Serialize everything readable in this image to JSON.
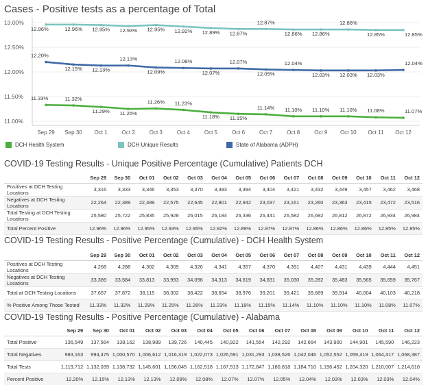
{
  "chart_title": "Cases - Positive tests as a percentage of Total",
  "colors": {
    "dch_health": "#4caf3e",
    "dch_unique": "#7cc4c0",
    "alabama": "#3f6aa7"
  },
  "chart_data": {
    "type": "line",
    "title": "Cases - Positive tests as a percentage of Total",
    "categories": [
      "Sep 29",
      "Sep 30",
      "Oct 1",
      "Oct 2",
      "Oct 3",
      "Oct 4",
      "Oct 5",
      "Oct 6",
      "Oct 7",
      "Oct 8",
      "Oct 9",
      "Oct 10",
      "Oct 11",
      "Oct 12"
    ],
    "y_ticks": [
      "13.00%",
      "12.50%",
      "12.00%",
      "11.50%",
      "11.00%"
    ],
    "ylim": [
      11.0,
      13.0
    ],
    "series": [
      {
        "name": "DCH Unique Results",
        "color": "#7cc4c0",
        "values": [
          12.96,
          12.96,
          12.95,
          12.93,
          12.95,
          12.92,
          12.89,
          12.87,
          12.87,
          12.86,
          12.86,
          12.86,
          12.85,
          12.85
        ],
        "labels": [
          "12.96%",
          "12.96%",
          "12.95%",
          "12.93%",
          "12.95%",
          "12.92%",
          "12.89%",
          "12.87%",
          "12.87%",
          "12.86%",
          "12.86%",
          "12.86%",
          "12.85%",
          "12.85%"
        ]
      },
      {
        "name": "State of Alabama (ADPH)",
        "color": "#3f6aa7",
        "values": [
          12.2,
          12.15,
          12.13,
          12.13,
          12.09,
          12.08,
          12.07,
          12.07,
          12.05,
          12.04,
          12.03,
          12.03,
          12.03,
          12.04
        ],
        "labels": [
          "12.20%",
          "12.15%",
          "12.13%",
          "12.13%",
          "12.09%",
          "12.08%",
          "12.07%",
          "12.07%",
          "12.05%",
          "12.04%",
          "12.03%",
          "12.03%",
          "12.03%",
          "12.04%"
        ]
      },
      {
        "name": "DCH Health System",
        "color": "#4caf3e",
        "values": [
          11.33,
          11.32,
          11.29,
          11.25,
          11.26,
          11.23,
          11.18,
          11.15,
          11.14,
          11.1,
          11.1,
          11.1,
          11.08,
          11.07
        ],
        "labels": [
          "11.33%",
          "11.32%",
          "11.29%",
          "11.25%",
          "11.26%",
          "11.23%",
          "11.18%",
          "11.15%",
          "11.14%",
          "11.10%",
          "11.10%",
          "11.10%",
          "11.08%",
          "11.07%"
        ]
      }
    ]
  },
  "legend": [
    {
      "label": "DCH Health System",
      "color": "#4caf3e"
    },
    {
      "label": "DCH Unique Results",
      "color": "#7cc4c0"
    },
    {
      "label": "State of Alabama (ADPH)",
      "color": "#3f6aa7"
    }
  ],
  "tables": [
    {
      "title": "COVID-19 Testing Results - Unique Positive Percentage (Cumulative) Patients DCH",
      "columns": [
        "Sep 29",
        "Sep 30",
        "Oct 01",
        "Oct 02",
        "Oct 03",
        "Oct 04",
        "Oct 05",
        "Oct 06",
        "Oct 07",
        "Oct 08",
        "Oct 09",
        "Oct 10",
        "Oct 11",
        "Oct 12"
      ],
      "rows": [
        {
          "label": "Positives at DCH Testing Locations",
          "values": [
            "3,316",
            "3,333",
            "3,346",
            "3,353",
            "3,370",
            "3,383",
            "3,394",
            "3,404",
            "3,421",
            "3,432",
            "3,449",
            "3,457",
            "3,462",
            "3,468"
          ]
        },
        {
          "label": "Negatives at DCH Testing Locations",
          "values": [
            "22,264",
            "22,389",
            "22,489",
            "22,575",
            "22,645",
            "22,801",
            "22,942",
            "23,037",
            "23,161",
            "23,260",
            "23,363",
            "23,415",
            "23,472",
            "23,516"
          ]
        },
        {
          "label": "Total Testing at DCH Testing Locations",
          "values": [
            "25,580",
            "25,722",
            "25,835",
            "25,928",
            "26,015",
            "26,184",
            "26,336",
            "26,441",
            "26,582",
            "26,692",
            "26,812",
            "26,872",
            "26,934",
            "26,984"
          ]
        },
        {
          "label": "Total Percent Positive",
          "values": [
            "12.96%",
            "12.96%",
            "12.95%",
            "12.93%",
            "12.95%",
            "12.92%",
            "12.89%",
            "12.87%",
            "12.87%",
            "12.86%",
            "12.86%",
            "12.86%",
            "12.85%",
            "12.85%"
          ]
        }
      ]
    },
    {
      "title": "COVID-19 Testing Results - Positive Percentage (Cumulative) - DCH Health System",
      "columns": [
        "Sep 29",
        "Sep 30",
        "Oct 01",
        "Oct 02",
        "Oct 03",
        "Oct 04",
        "Oct 05",
        "Oct 06",
        "Oct 07",
        "Oct 08",
        "Oct 09",
        "Oct 10",
        "Oct 11",
        "Oct 12"
      ],
      "rows": [
        {
          "label": "Positives at DCH Testing Locations",
          "values": [
            "4,268",
            "4,288",
            "4,302",
            "4,309",
            "4,326",
            "4,341",
            "4,357",
            "4,370",
            "4,391",
            "4,407",
            "4,431",
            "4,439",
            "4,444",
            "4,451"
          ]
        },
        {
          "label": "Negatives at DCH Testing Locations",
          "values": [
            "33,389",
            "33,584",
            "33,813",
            "33,993",
            "34,096",
            "34,313",
            "34,619",
            "34,831",
            "35,030",
            "35,282",
            "35,483",
            "35,565",
            "35,659",
            "35,767"
          ]
        },
        {
          "label": "Total at DCH Testing Locations",
          "values": [
            "37,657",
            "37,872",
            "38,115",
            "38,302",
            "38,422",
            "38,654",
            "38,976",
            "39,201",
            "39,421",
            "39,689",
            "39,914",
            "40,004",
            "40,103",
            "40,218"
          ]
        },
        {
          "label": "% Positive Among Those Tested",
          "values": [
            "11.33%",
            "11.32%",
            "11.29%",
            "11.25%",
            "11.26%",
            "11.23%",
            "11.18%",
            "11.15%",
            "11.14%",
            "11.10%",
            "11.10%",
            "11.10%",
            "11.08%",
            "11.07%"
          ]
        }
      ]
    },
    {
      "title": "COVID-19 Testing Results - Positive Percentage (Cumulative) - Alabama",
      "columns": [
        "Sep 29",
        "Sep 30",
        "Oct 01",
        "Oct 02",
        "Oct 03",
        "Oct 04",
        "Oct 05",
        "Oct 06",
        "Oct 07",
        "Oct 08",
        "Oct 09",
        "Oct 10",
        "Oct 11",
        "Oct 12"
      ],
      "rows": [
        {
          "label": "Total Positive",
          "values": [
            "136,549",
            "137,564",
            "138,162",
            "138,989",
            "139,726",
            "140,445",
            "140,922",
            "141,554",
            "142,292",
            "142,664",
            "143,900",
            "144,901",
            "145,590",
            "146,223"
          ]
        },
        {
          "label": "Total Negatives",
          "values": [
            "983,163",
            "994,475",
            "1,000,570",
            "1,006,612",
            "1,016,319",
            "1,022,073",
            "1,026,591",
            "1,031,293",
            "1,038,526",
            "1,042,046",
            "1,052,552",
            "1,059,419",
            "1,064,417",
            "1,068,387"
          ]
        },
        {
          "label": "Total Tests",
          "values": [
            "1,119,712",
            "1,132,039",
            "1,138,732",
            "1,145,601",
            "1,156,045",
            "1,162,518",
            "1,167,513",
            "1,172,847",
            "1,180,818",
            "1,184,710",
            "1,196,452",
            "1,204,320",
            "1,210,007",
            "1,214,610"
          ]
        },
        {
          "label": "Percent Positive",
          "values": [
            "12.20%",
            "12.15%",
            "12.13%",
            "12.13%",
            "12.09%",
            "12.08%",
            "12.07%",
            "12.07%",
            "12.05%",
            "12.04%",
            "12.03%",
            "12.03%",
            "12.03%",
            "12.04%"
          ]
        }
      ]
    }
  ]
}
